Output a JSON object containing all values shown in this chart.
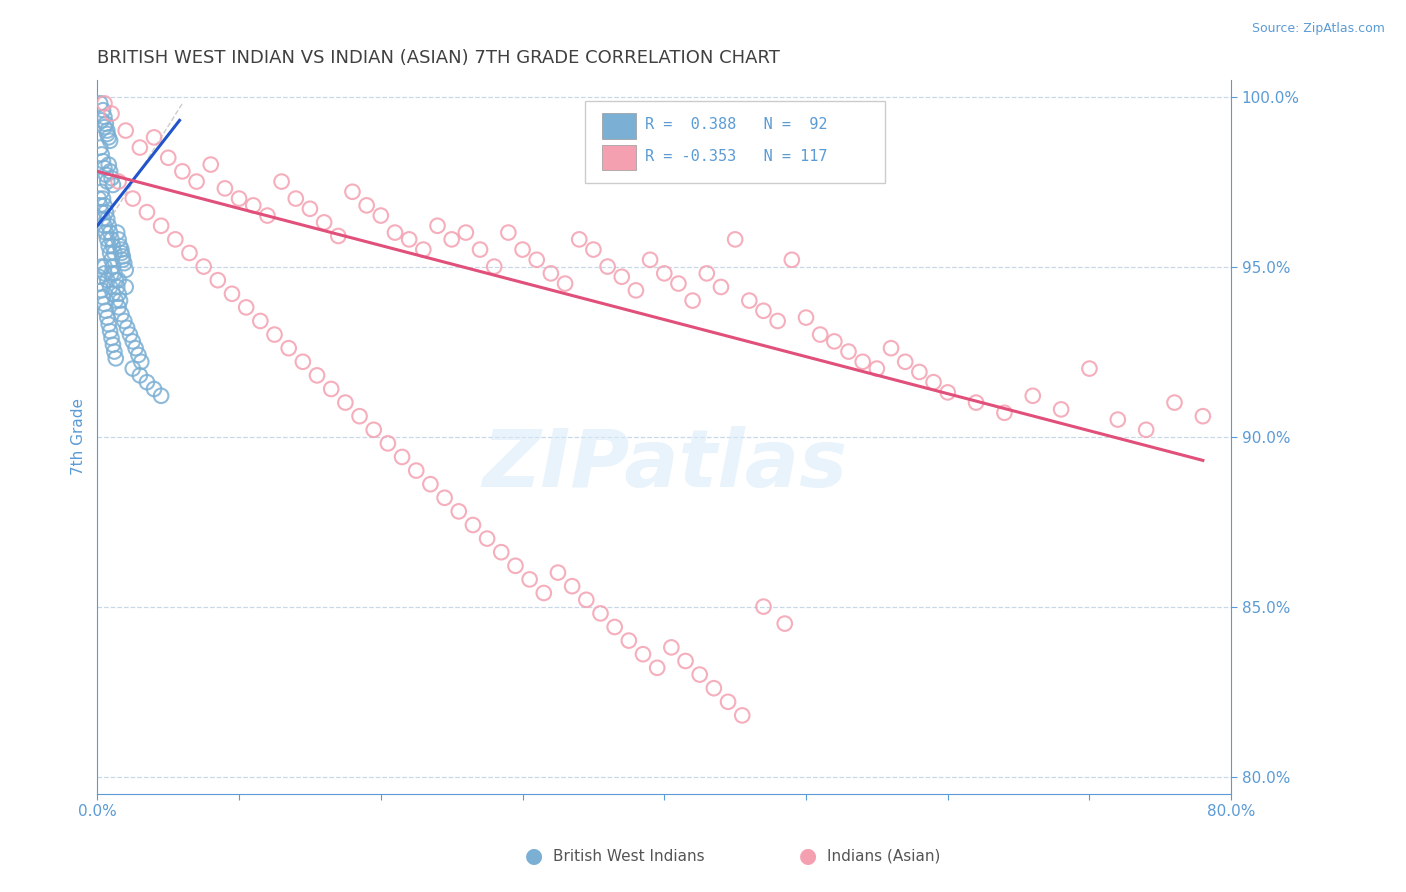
{
  "title": "BRITISH WEST INDIAN VS INDIAN (ASIAN) 7TH GRADE CORRELATION CHART",
  "source": "Source: ZipAtlas.com",
  "ylabel": "7th Grade",
  "xlim": [
    0.0,
    0.8
  ],
  "ylim": [
    0.795,
    1.005
  ],
  "xticks": [
    0.0,
    0.1,
    0.2,
    0.3,
    0.4,
    0.5,
    0.6,
    0.7,
    0.8
  ],
  "yticks_right": [
    0.8,
    0.85,
    0.9,
    0.95,
    1.0
  ],
  "blue_color": "#7bafd4",
  "pink_color": "#f4a0b0",
  "blue_line_color": "#2255cc",
  "pink_line_color": "#e0507a",
  "axis_color": "#5b9bd5",
  "title_color": "#404040",
  "watermark": "ZIPatlas",
  "blue_scatter_x": [
    0.002,
    0.004,
    0.005,
    0.006,
    0.007,
    0.008,
    0.003,
    0.005,
    0.007,
    0.009,
    0.002,
    0.003,
    0.004,
    0.005,
    0.006,
    0.007,
    0.008,
    0.009,
    0.01,
    0.011,
    0.003,
    0.004,
    0.005,
    0.006,
    0.007,
    0.008,
    0.009,
    0.01,
    0.011,
    0.012,
    0.001,
    0.002,
    0.003,
    0.004,
    0.005,
    0.006,
    0.007,
    0.008,
    0.009,
    0.01,
    0.011,
    0.012,
    0.013,
    0.014,
    0.015,
    0.016,
    0.017,
    0.018,
    0.019,
    0.02,
    0.001,
    0.002,
    0.003,
    0.004,
    0.005,
    0.006,
    0.007,
    0.008,
    0.009,
    0.01,
    0.011,
    0.012,
    0.013,
    0.014,
    0.015,
    0.016,
    0.017,
    0.018,
    0.003,
    0.005,
    0.007,
    0.009,
    0.011,
    0.013,
    0.015,
    0.017,
    0.019,
    0.021,
    0.023,
    0.025,
    0.027,
    0.029,
    0.031,
    0.005,
    0.01,
    0.015,
    0.02,
    0.025,
    0.03,
    0.035,
    0.04,
    0.045
  ],
  "blue_scatter_y": [
    0.998,
    0.996,
    0.994,
    0.992,
    0.99,
    0.988,
    0.993,
    0.991,
    0.989,
    0.987,
    0.985,
    0.983,
    0.981,
    0.979,
    0.977,
    0.975,
    0.98,
    0.978,
    0.976,
    0.974,
    0.972,
    0.97,
    0.968,
    0.966,
    0.964,
    0.962,
    0.96,
    0.958,
    0.956,
    0.954,
    0.97,
    0.968,
    0.966,
    0.964,
    0.962,
    0.96,
    0.958,
    0.956,
    0.954,
    0.952,
    0.95,
    0.948,
    0.946,
    0.944,
    0.942,
    0.94,
    0.955,
    0.953,
    0.951,
    0.949,
    0.947,
    0.945,
    0.943,
    0.941,
    0.939,
    0.937,
    0.935,
    0.933,
    0.931,
    0.929,
    0.927,
    0.925,
    0.923,
    0.96,
    0.958,
    0.956,
    0.954,
    0.952,
    0.95,
    0.948,
    0.946,
    0.944,
    0.942,
    0.94,
    0.938,
    0.936,
    0.934,
    0.932,
    0.93,
    0.928,
    0.926,
    0.924,
    0.922,
    0.95,
    0.948,
    0.946,
    0.944,
    0.92,
    0.918,
    0.916,
    0.914,
    0.912
  ],
  "pink_scatter_x": [
    0.005,
    0.01,
    0.02,
    0.03,
    0.04,
    0.05,
    0.06,
    0.07,
    0.08,
    0.09,
    0.1,
    0.11,
    0.12,
    0.13,
    0.14,
    0.15,
    0.16,
    0.17,
    0.18,
    0.19,
    0.2,
    0.21,
    0.22,
    0.23,
    0.24,
    0.25,
    0.26,
    0.27,
    0.28,
    0.29,
    0.3,
    0.31,
    0.32,
    0.33,
    0.34,
    0.35,
    0.36,
    0.37,
    0.38,
    0.39,
    0.4,
    0.41,
    0.42,
    0.43,
    0.44,
    0.45,
    0.46,
    0.47,
    0.48,
    0.49,
    0.5,
    0.51,
    0.52,
    0.53,
    0.54,
    0.55,
    0.56,
    0.57,
    0.58,
    0.59,
    0.6,
    0.62,
    0.64,
    0.66,
    0.68,
    0.7,
    0.72,
    0.74,
    0.76,
    0.78,
    0.015,
    0.025,
    0.035,
    0.045,
    0.055,
    0.065,
    0.075,
    0.085,
    0.095,
    0.105,
    0.115,
    0.125,
    0.135,
    0.145,
    0.155,
    0.165,
    0.175,
    0.185,
    0.195,
    0.205,
    0.215,
    0.225,
    0.235,
    0.245,
    0.255,
    0.265,
    0.275,
    0.285,
    0.295,
    0.305,
    0.315,
    0.325,
    0.335,
    0.345,
    0.355,
    0.365,
    0.375,
    0.385,
    0.395,
    0.405,
    0.415,
    0.425,
    0.435,
    0.445,
    0.455,
    0.47,
    0.485
  ],
  "pink_scatter_y": [
    0.998,
    0.995,
    0.99,
    0.985,
    0.988,
    0.982,
    0.978,
    0.975,
    0.98,
    0.973,
    0.97,
    0.968,
    0.965,
    0.975,
    0.97,
    0.967,
    0.963,
    0.959,
    0.972,
    0.968,
    0.965,
    0.96,
    0.958,
    0.955,
    0.962,
    0.958,
    0.96,
    0.955,
    0.95,
    0.96,
    0.955,
    0.952,
    0.948,
    0.945,
    0.958,
    0.955,
    0.95,
    0.947,
    0.943,
    0.952,
    0.948,
    0.945,
    0.94,
    0.948,
    0.944,
    0.958,
    0.94,
    0.937,
    0.934,
    0.952,
    0.935,
    0.93,
    0.928,
    0.925,
    0.922,
    0.92,
    0.926,
    0.922,
    0.919,
    0.916,
    0.913,
    0.91,
    0.907,
    0.912,
    0.908,
    0.92,
    0.905,
    0.902,
    0.91,
    0.906,
    0.975,
    0.97,
    0.966,
    0.962,
    0.958,
    0.954,
    0.95,
    0.946,
    0.942,
    0.938,
    0.934,
    0.93,
    0.926,
    0.922,
    0.918,
    0.914,
    0.91,
    0.906,
    0.902,
    0.898,
    0.894,
    0.89,
    0.886,
    0.882,
    0.878,
    0.874,
    0.87,
    0.866,
    0.862,
    0.858,
    0.854,
    0.86,
    0.856,
    0.852,
    0.848,
    0.844,
    0.84,
    0.836,
    0.832,
    0.838,
    0.834,
    0.83,
    0.826,
    0.822,
    0.818,
    0.85,
    0.845
  ],
  "blue_line_x": [
    0.0,
    0.058
  ],
  "blue_line_y": [
    0.962,
    0.993
  ],
  "pink_line_x": [
    0.0,
    0.78
  ],
  "pink_line_y": [
    0.978,
    0.893
  ],
  "diag_line_x": [
    0.0,
    0.06
  ],
  "diag_line_y": [
    0.958,
    0.998
  ]
}
